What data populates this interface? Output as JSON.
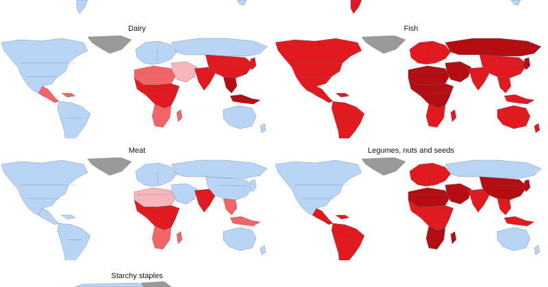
{
  "colors": {
    "ocean": "#ffffff",
    "low": "#b9d5f5",
    "no_data": "#9a9a9a",
    "r1": "#f7b6b9",
    "r2": "#f36466",
    "r3": "#e01a1f",
    "r4": "#b40d12"
  },
  "panels": [
    {
      "key": "dairy",
      "title": "Dairy",
      "shade": {
        "na": "low",
        "ca": "r2",
        "sa": "low",
        "eu": "low",
        "naf": "r2",
        "me": "r1",
        "af": "r3",
        "afs": "r2",
        "ru": "low",
        "ind": "r3",
        "chn": "r3",
        "sea": "r4",
        "jp": "r3",
        "au": "low",
        "gl": "no_data"
      }
    },
    {
      "key": "fish",
      "title": "Fish",
      "shade": {
        "na": "r3",
        "ca": "r3",
        "sa": "r3",
        "eu": "r3",
        "naf": "r4",
        "me": "r4",
        "af": "r4",
        "afs": "r3",
        "ru": "r4",
        "ind": "r3",
        "chn": "r3",
        "sea": "r3",
        "jp": "r4",
        "au": "r3",
        "gl": "no_data"
      }
    },
    {
      "key": "meat",
      "title": "Meat",
      "shade": {
        "na": "low",
        "ca": "low",
        "sa": "low",
        "eu": "low",
        "naf": "r1",
        "me": "low",
        "af": "r3",
        "afs": "r2",
        "ru": "low",
        "ind": "r3",
        "chn": "low",
        "sea": "r2",
        "jp": "low",
        "au": "low",
        "gl": "no_data"
      }
    },
    {
      "key": "legumes",
      "title": "Legumes, nuts and seeds",
      "shade": {
        "na": "low",
        "ca": "r3",
        "sa": "r3",
        "eu": "r3",
        "naf": "r4",
        "me": "r4",
        "af": "r3",
        "afs": "r4",
        "ru": "low",
        "ind": "r3",
        "chn": "r4",
        "sea": "r3",
        "jp": "r4",
        "au": "low",
        "gl": "no_data"
      }
    }
  ],
  "bottom": {
    "title": "Starchy staples"
  }
}
